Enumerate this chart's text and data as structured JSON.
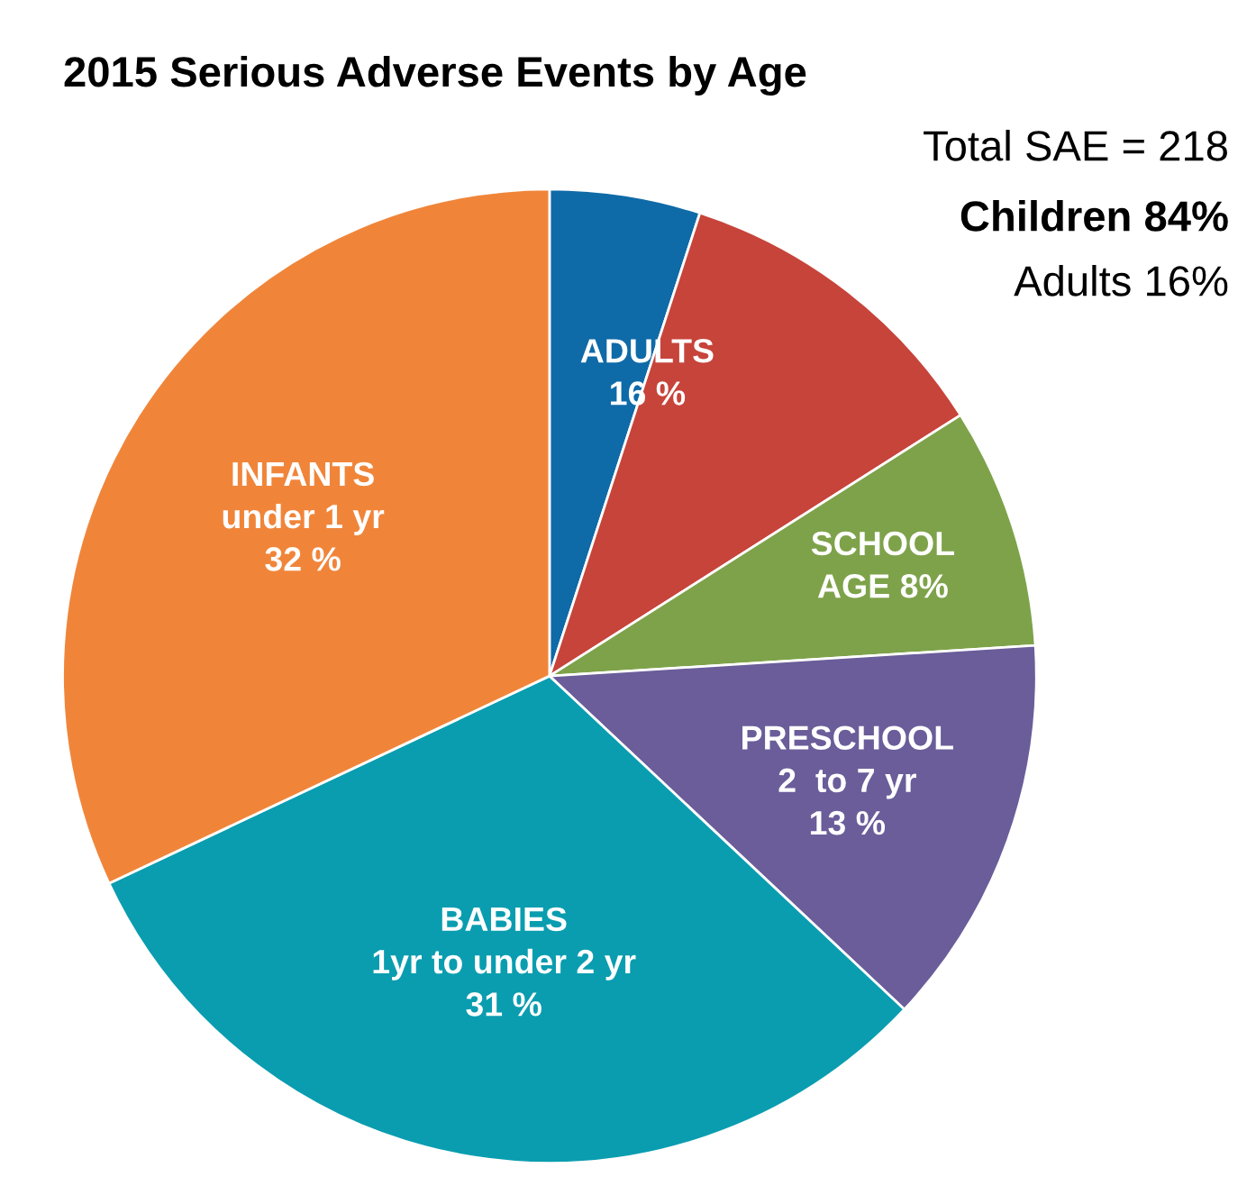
{
  "chart_data": {
    "type": "pie",
    "title": "2015 Serious Adverse Events by Age",
    "categories": [
      null,
      null,
      "SCHOOL\nAGE 8%",
      "PRESCHOOL\n2  to 7 yr\n13 %",
      "BABIES\n1yr to under 2 yr\n31 %",
      "INFANTS\nunder 1 yr\n32 %"
    ],
    "values": [
      5,
      11,
      8,
      13,
      31,
      32
    ],
    "colors": [
      "#0f6aa8",
      "#c7443b",
      "#7ea24a",
      "#6b5d9a",
      "#0a9db0",
      "#f0853a"
    ],
    "annotations": [
      "Total SAE = 218",
      "Children 84%",
      "Adults 16%",
      "ADULTS\n16 %"
    ],
    "legend": false
  }
}
